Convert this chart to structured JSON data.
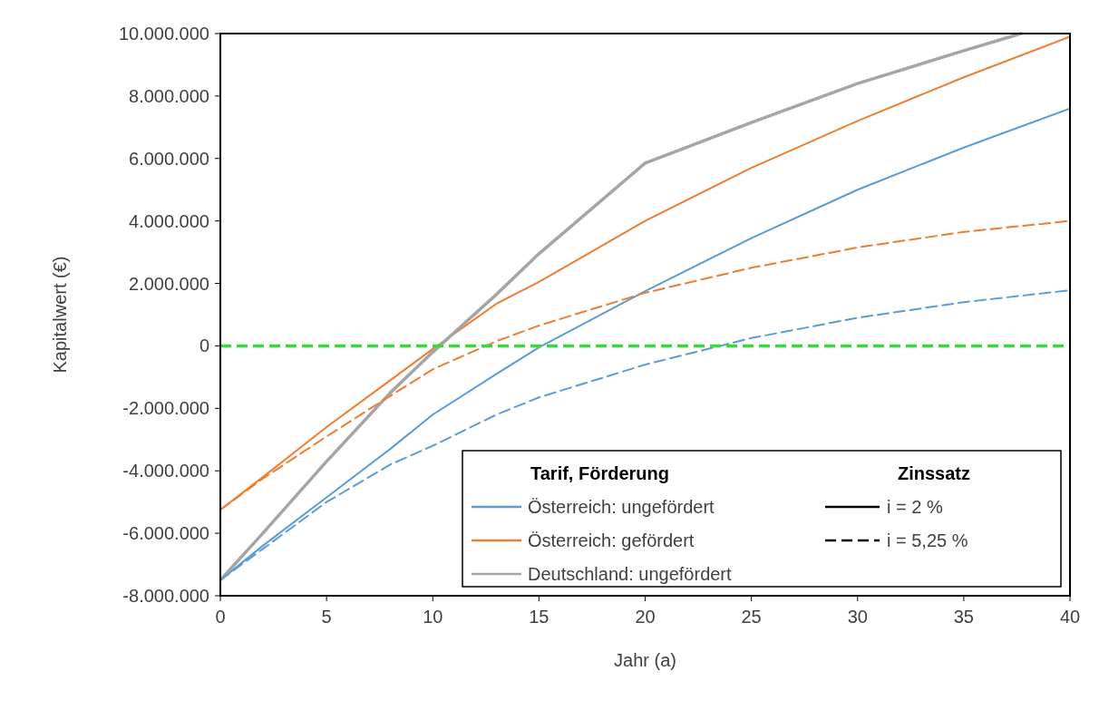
{
  "chart_data": {
    "type": "line",
    "xlabel": "Jahr (a)",
    "ylabel": "Kapitalwert (€)",
    "legend_title": "Tarif, Förderung",
    "legend": "bottom",
    "grid": false,
    "line_style": "solid",
    "marker": "none",
    "xlim": [
      0,
      40
    ],
    "xticks": [
      0,
      5,
      10,
      15,
      20,
      25,
      30,
      35,
      40
    ],
    "ylim": [
      -8000000,
      10000000
    ],
    "yticks": [
      {
        "value": -8000000,
        "label": "-8.000.000"
      },
      {
        "value": -6000000,
        "label": "-6.000.000"
      },
      {
        "value": -4000000,
        "label": "-4.000.000"
      },
      {
        "value": -2000000,
        "label": "-2.000.000"
      },
      {
        "value": 0,
        "label": "0"
      },
      {
        "value": 2000000,
        "label": "2.000.000"
      },
      {
        "value": 4000000,
        "label": "4.000.000"
      },
      {
        "value": 6000000,
        "label": "6.000.000"
      },
      {
        "value": 8000000,
        "label": "8.000.000"
      },
      {
        "value": 10000000,
        "label": "10.000.000"
      }
    ],
    "x": [
      0,
      2,
      5,
      8,
      10,
      13,
      15,
      20,
      25,
      30,
      35,
      40
    ],
    "series": [
      {
        "name": "Österreich: ungefördert",
        "color": "#5b9bd5",
        "values": [
          -7500000,
          -6400000,
          -4850000,
          -3300000,
          -2200000,
          -900000,
          -50000,
          1750000,
          3450000,
          5000000,
          6350000,
          7600000
        ]
      },
      {
        "name": "Österreich: gefördert",
        "color": "#ed7d31",
        "values": [
          -5250000,
          -4200000,
          -2600000,
          -1100000,
          -100000,
          1350000,
          2050000,
          4000000,
          5700000,
          7200000,
          8600000,
          9900000
        ]
      },
      {
        "name": "Deutschland: ungefördert",
        "color": "#a5a5a5",
        "x": [
          0,
          2,
          5,
          8,
          10,
          13,
          15,
          20,
          25,
          30,
          35,
          37.7
        ],
        "values": [
          -7500000,
          -6000000,
          -3700000,
          -1500000,
          -200000,
          1650000,
          2950000,
          5850000,
          7150000,
          8400000,
          9450000,
          10000000
        ]
      },
      {
        "color": "#5b9bd5",
        "line_style": "dashed",
        "values": [
          -7500000,
          -6500000,
          -5000000,
          -3800000,
          -3200000,
          -2200000,
          -1650000,
          -600000,
          250000,
          900000,
          1400000,
          1780000
        ]
      },
      {
        "color": "#ed7d31",
        "line_style": "dashed",
        "values": [
          -5250000,
          -4250000,
          -2900000,
          -1600000,
          -750000,
          150000,
          650000,
          1700000,
          2500000,
          3150000,
          3650000,
          4000000
        ]
      }
    ],
    "ref_lines": [
      {
        "axis": "y",
        "value": 0,
        "color": "#33dd33",
        "line_style": "dashed"
      }
    ],
    "annotations": [
      "Zinssatz",
      "i = 2 %",
      "i = 5,25 %"
    ]
  }
}
